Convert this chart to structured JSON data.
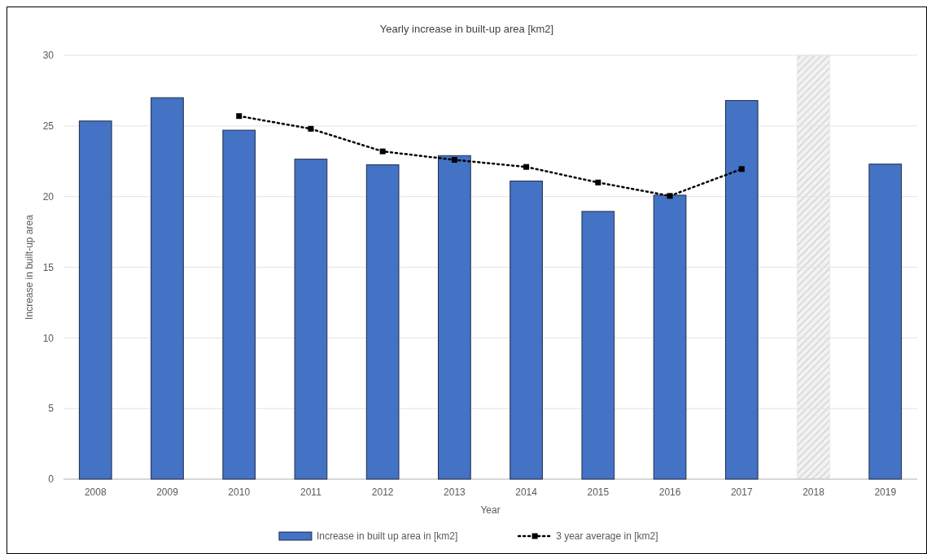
{
  "chart_data": {
    "type": "bar",
    "title": "Yearly increase in built-up area [km2]",
    "xlabel": "Year",
    "ylabel": "Increase in built-up area",
    "categories": [
      "2008",
      "2009",
      "2010",
      "2011",
      "2012",
      "2013",
      "2014",
      "2015",
      "2016",
      "2017",
      "2018",
      "2019"
    ],
    "series": [
      {
        "name": "Increase in built up area in [km2]",
        "color": "#4472c4",
        "values": [
          25.35,
          27.0,
          24.7,
          22.65,
          22.25,
          22.9,
          21.1,
          18.95,
          20.1,
          26.8,
          null,
          22.3
        ]
      },
      {
        "name": "3 year average in [km2]",
        "type": "line",
        "color": "#000000",
        "marker": "square",
        "line_style": "dotted",
        "values": [
          null,
          null,
          25.7,
          24.8,
          23.2,
          22.6,
          22.1,
          21.0,
          20.05,
          21.95,
          null,
          null
        ]
      }
    ],
    "bands": [
      {
        "axis": "x",
        "from": "2018",
        "to": "2018",
        "color": "#d9d9d9"
      }
    ],
    "ylim": [
      0,
      30
    ],
    "yticks": [
      0,
      5,
      10,
      15,
      20,
      25,
      30
    ],
    "grid": "y",
    "legend": "bottom"
  }
}
